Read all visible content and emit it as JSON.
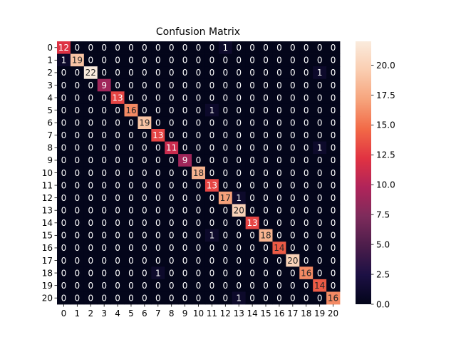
{
  "chart_data": {
    "type": "heatmap",
    "title": "Confusion Matrix",
    "xlabel": "",
    "ylabel": "",
    "x_categories": [
      "0",
      "1",
      "2",
      "3",
      "4",
      "5",
      "6",
      "7",
      "8",
      "9",
      "10",
      "11",
      "12",
      "13",
      "14",
      "15",
      "16",
      "17",
      "18",
      "19",
      "20"
    ],
    "y_categories": [
      "0",
      "1",
      "2",
      "3",
      "4",
      "5",
      "6",
      "7",
      "8",
      "9",
      "10",
      "11",
      "12",
      "13",
      "14",
      "15",
      "16",
      "17",
      "18",
      "19",
      "20"
    ],
    "matrix": [
      [
        12,
        0,
        0,
        0,
        0,
        0,
        0,
        0,
        0,
        0,
        0,
        0,
        1,
        0,
        0,
        0,
        0,
        0,
        0,
        0,
        0
      ],
      [
        1,
        19,
        0,
        0,
        0,
        0,
        0,
        0,
        0,
        0,
        0,
        0,
        0,
        0,
        0,
        0,
        0,
        0,
        0,
        0,
        0
      ],
      [
        0,
        0,
        22,
        0,
        0,
        0,
        0,
        0,
        0,
        0,
        0,
        0,
        0,
        0,
        0,
        0,
        0,
        0,
        0,
        1,
        0
      ],
      [
        0,
        0,
        0,
        9,
        0,
        0,
        0,
        0,
        0,
        0,
        0,
        0,
        0,
        0,
        0,
        0,
        0,
        0,
        0,
        0,
        0
      ],
      [
        0,
        0,
        0,
        0,
        13,
        0,
        0,
        0,
        0,
        0,
        0,
        0,
        0,
        0,
        0,
        0,
        0,
        0,
        0,
        0,
        0
      ],
      [
        0,
        0,
        0,
        0,
        0,
        16,
        0,
        0,
        0,
        0,
        0,
        1,
        0,
        0,
        0,
        0,
        0,
        0,
        0,
        0,
        0
      ],
      [
        0,
        0,
        0,
        0,
        0,
        0,
        19,
        0,
        0,
        0,
        0,
        0,
        0,
        0,
        0,
        0,
        0,
        0,
        0,
        0,
        0
      ],
      [
        0,
        0,
        0,
        0,
        0,
        0,
        0,
        13,
        0,
        0,
        0,
        0,
        0,
        0,
        0,
        0,
        0,
        0,
        0,
        0,
        0
      ],
      [
        0,
        0,
        0,
        0,
        0,
        0,
        0,
        0,
        11,
        0,
        0,
        0,
        0,
        0,
        0,
        0,
        0,
        0,
        0,
        1,
        0
      ],
      [
        0,
        0,
        0,
        0,
        0,
        0,
        0,
        0,
        0,
        9,
        0,
        0,
        0,
        0,
        0,
        0,
        0,
        0,
        0,
        0,
        0
      ],
      [
        0,
        0,
        0,
        0,
        0,
        0,
        0,
        0,
        0,
        0,
        18,
        0,
        0,
        0,
        0,
        0,
        0,
        0,
        0,
        0,
        0
      ],
      [
        0,
        0,
        0,
        0,
        0,
        0,
        0,
        0,
        0,
        0,
        0,
        13,
        0,
        0,
        0,
        0,
        0,
        0,
        0,
        0,
        0
      ],
      [
        0,
        0,
        0,
        0,
        0,
        0,
        0,
        0,
        0,
        0,
        0,
        0,
        17,
        1,
        0,
        0,
        0,
        0,
        0,
        0,
        0
      ],
      [
        0,
        0,
        0,
        0,
        0,
        0,
        0,
        0,
        0,
        0,
        0,
        0,
        0,
        20,
        0,
        0,
        0,
        0,
        0,
        0,
        0
      ],
      [
        0,
        0,
        0,
        0,
        0,
        0,
        0,
        0,
        0,
        0,
        0,
        0,
        0,
        0,
        13,
        0,
        0,
        0,
        0,
        0,
        0
      ],
      [
        0,
        0,
        0,
        0,
        0,
        0,
        0,
        0,
        0,
        0,
        0,
        1,
        0,
        0,
        0,
        18,
        0,
        0,
        0,
        0,
        0
      ],
      [
        0,
        0,
        0,
        0,
        0,
        0,
        0,
        0,
        0,
        0,
        0,
        0,
        0,
        0,
        0,
        0,
        14,
        0,
        0,
        0,
        0
      ],
      [
        0,
        0,
        0,
        0,
        0,
        0,
        0,
        0,
        0,
        0,
        0,
        0,
        0,
        0,
        0,
        0,
        0,
        20,
        0,
        0,
        0
      ],
      [
        0,
        0,
        0,
        0,
        0,
        0,
        0,
        1,
        0,
        0,
        0,
        0,
        0,
        0,
        0,
        0,
        0,
        0,
        16,
        0,
        0
      ],
      [
        0,
        0,
        0,
        0,
        0,
        0,
        0,
        0,
        0,
        0,
        0,
        0,
        0,
        0,
        0,
        0,
        0,
        0,
        0,
        14,
        0
      ],
      [
        0,
        0,
        0,
        0,
        0,
        0,
        0,
        0,
        0,
        0,
        0,
        0,
        0,
        1,
        0,
        0,
        0,
        0,
        0,
        0,
        16
      ]
    ],
    "vmin": 0,
    "vmax": 22,
    "colormap": "rocket",
    "colormap_stops": [
      "#03051a",
      "#1c1044",
      "#4c1d4b",
      "#7d2b5b",
      "#b0245a",
      "#e13342",
      "#f26a47",
      "#f6a47c",
      "#facdb0",
      "#faebdd"
    ],
    "annot_color_dark_bg": "#ffffff",
    "annot_color_light_bg": "#262626",
    "colorbar": {
      "ticks": [
        0.0,
        2.5,
        5.0,
        7.5,
        10.0,
        12.5,
        15.0,
        17.5,
        20.0
      ],
      "tick_labels": [
        "0.0",
        "2.5",
        "5.0",
        "7.5",
        "10.0",
        "12.5",
        "15.0",
        "17.5",
        "20.0"
      ],
      "position": "right"
    }
  }
}
